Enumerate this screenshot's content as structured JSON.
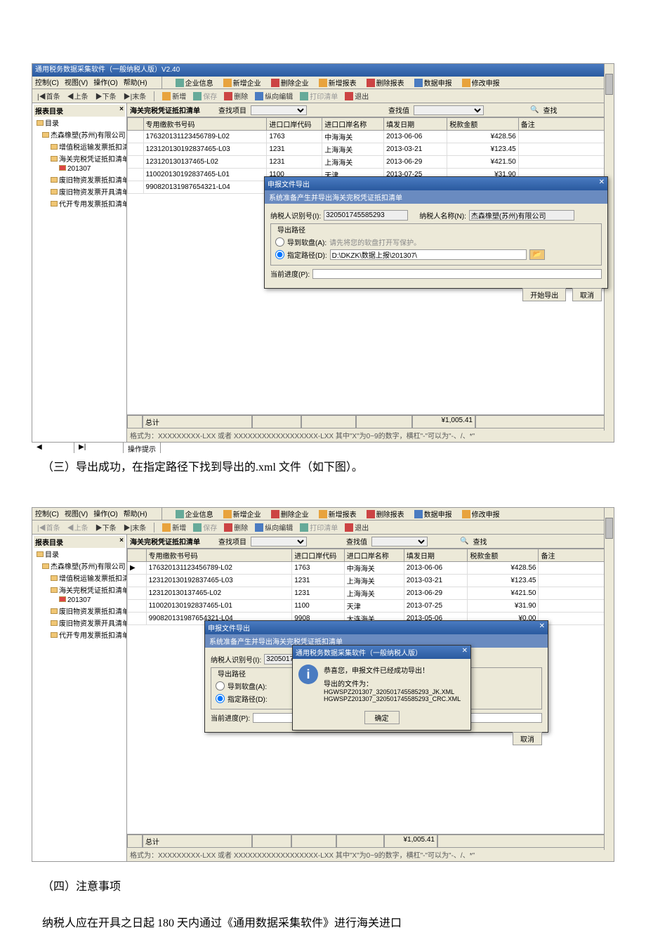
{
  "colors": {
    "titlebar_start": "#4a7bc1",
    "titlebar_end": "#2a5a9f",
    "bg": "#ece9d8",
    "grid_border": "#999",
    "folder": "#f0c674"
  },
  "app": {
    "title": "通用税务数据采集软件（一般纳税人版）V2.40",
    "menu": [
      "控制(C)",
      "视图(V)",
      "操作(O)",
      "帮助(H)"
    ],
    "toolbar_top": [
      {
        "label": "企业信息",
        "icon": "ent"
      },
      {
        "label": "新增企业",
        "icon": "new",
        "disabled": true
      },
      {
        "label": "删除企业",
        "icon": "del",
        "disabled": true
      },
      {
        "label": "新增报表",
        "icon": "new",
        "disabled": true
      },
      {
        "label": "删除报表",
        "icon": "x"
      },
      {
        "label": "数据申报",
        "icon": "blue"
      },
      {
        "label": "修改申报",
        "icon": "new",
        "disabled": true
      }
    ],
    "toolbar_nav": [
      "|◀首条",
      "◀上条",
      "▶下条",
      "▶|末条"
    ],
    "toolbar_edit": [
      {
        "label": "新增",
        "icon": "new"
      },
      {
        "label": "保存",
        "icon": "save",
        "disabled": true
      },
      {
        "label": "删除",
        "icon": "x"
      },
      {
        "label": "纵向编辑",
        "icon": "blue"
      },
      {
        "label": "打印清单",
        "icon": "save",
        "disabled": true
      },
      {
        "label": "退出",
        "icon": "x"
      }
    ]
  },
  "tree": {
    "header": "报表目录",
    "items": [
      {
        "label": "目录",
        "lvl": 0
      },
      {
        "label": "杰森橡塑(苏州)有限公司",
        "lvl": 1
      },
      {
        "label": "增值税运输发票抵扣清单",
        "lvl": 2
      },
      {
        "label": "海关完税凭证抵扣清单",
        "lvl": 2
      },
      {
        "label": "201307",
        "lvl": 3,
        "sel": true
      },
      {
        "label": "废旧物资发票抵扣清单",
        "lvl": 2
      },
      {
        "label": "废旧物资发票开具清单",
        "lvl": 2
      },
      {
        "label": "代开专用发票抵扣清单",
        "lvl": 2
      }
    ]
  },
  "grid": {
    "title": "海关完税凭证抵扣清单",
    "search_label": "查找项目",
    "search_val_label": "查找值",
    "search_btn": "查找",
    "columns": [
      "专用缴款书号码",
      "进口口岸代码",
      "进口口岸名称",
      "填发日期",
      "税款金额",
      "备注"
    ],
    "rows": [
      [
        "176320131123456789-L02",
        "1763",
        "中海海关",
        "2013-06-06",
        "¥428.56",
        ""
      ],
      [
        "123120130192837465-L03",
        "1231",
        "上海海关",
        "2013-03-21",
        "¥123.45",
        ""
      ],
      [
        "123120130137465-L02",
        "1231",
        "上海海关",
        "2013-06-29",
        "¥421.50",
        ""
      ],
      [
        "110020130192837465-L01",
        "1100",
        "天津",
        "2013-07-25",
        "¥31.90",
        ""
      ],
      [
        "990820131987654321-L04",
        "9908",
        "大连海关",
        "2013-05-06",
        "¥0.00",
        ""
      ]
    ],
    "total_label": "总计",
    "total": "¥1,005.41",
    "hint": "格式为：XXXXXXXXX-LXX 或者 XXXXXXXXXXXXXXXXXX-LXX  其中\"X\"为0~9的数字，横杠\"-\"可以为\"-、/、*\""
  },
  "dialog": {
    "title": "申报文件导出",
    "subtitle": "系统准备产生并导出海关完税凭证抵扣清单",
    "taxpayer_id_label": "纳税人识别号(I):",
    "taxpayer_id": "320501745585293",
    "taxpayer_name_label": "纳税人名称(N):",
    "taxpayer_name": "杰森橡塑(苏州)有限公司",
    "export_path_legend": "导出路径",
    "opt_floppy": "导到软盘(A):",
    "floppy_hint": "请先将您的软盘打开写保护。",
    "opt_path": "指定路径(D):",
    "path_value": "D:\\DKZK\\数据上报\\201307\\",
    "progress_label": "当前进度(P):",
    "btn_export": "开始导出",
    "btn_cancel": "取消"
  },
  "msgbox": {
    "title": "通用税务数据采集软件（一般纳税人版）",
    "line1": "恭喜您，申报文件已经成功导出！",
    "line2": "导出的文件为：",
    "file1": "HGWSPZ201307_320501745585293_JK.XML",
    "file2": "HGWSPZ201307_320501745585293_CRC.XML",
    "btn": "确定"
  },
  "status": {
    "hint": "操作提示"
  },
  "narration": {
    "p1": "（三）导出成功，在指定路径下找到导出的.xml 文件（如下图）。",
    "p2": "（四）注意事项",
    "p3": "纳税人应在开具之日起 180 天内通过《通用数据采集软件》进行海关进口"
  }
}
